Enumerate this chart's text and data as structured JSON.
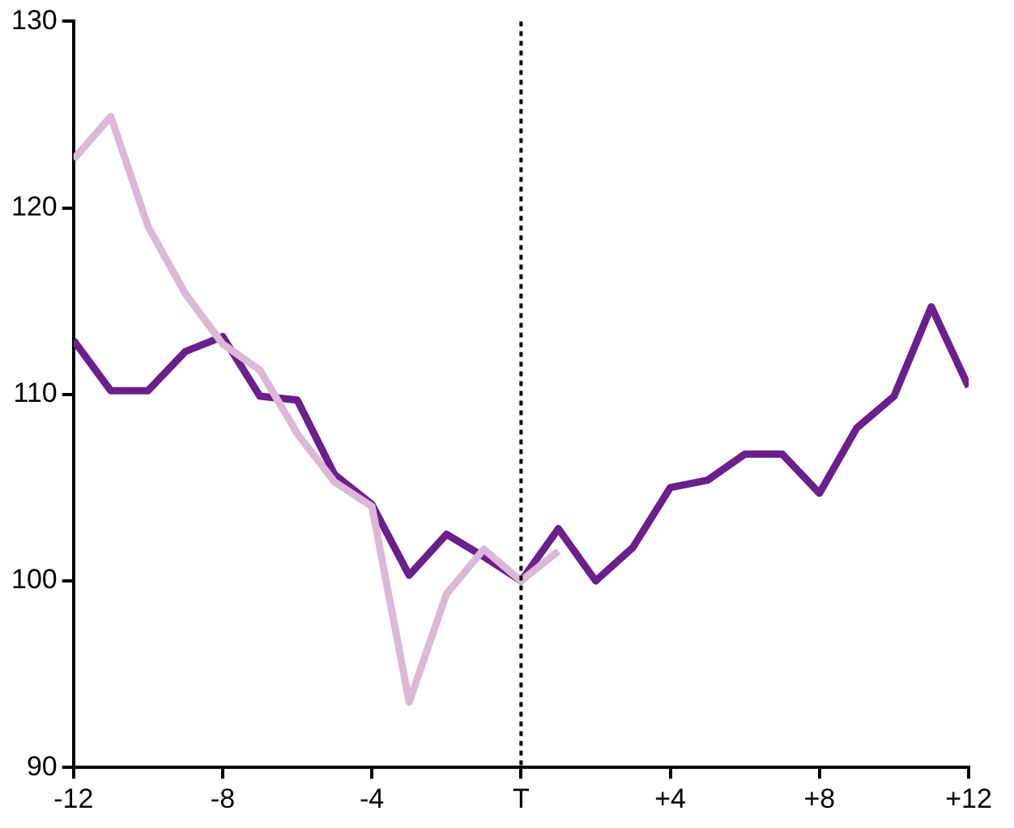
{
  "chart_data": {
    "type": "line",
    "x": [
      -12,
      -11,
      -10,
      -9,
      -8,
      -7,
      -6,
      -5,
      -4,
      -3,
      -2,
      -1,
      0,
      1,
      2,
      3,
      4,
      5,
      6,
      7,
      8,
      9,
      10,
      11,
      12
    ],
    "series": [
      {
        "color": "#dcb8d8",
        "x": [
          -12,
          -11,
          -10,
          -9,
          -8,
          -7,
          -6,
          -5,
          -4,
          -3,
          -2,
          -1,
          0,
          1
        ],
        "values": [
          122.6,
          124.9,
          119.0,
          115.4,
          112.7,
          111.3,
          107.9,
          105.3,
          104.0,
          93.5,
          99.3,
          101.7,
          100,
          101.6
        ]
      },
      {
        "color": "#6b1f8c",
        "values": [
          112.9,
          110.2,
          110.2,
          112.3,
          113.1,
          109.9,
          109.7,
          105.7,
          104.1,
          100.3,
          102.5,
          101.3,
          100,
          102.8,
          100,
          101.8,
          105.0,
          105.4,
          106.8,
          106.8,
          104.7,
          108.2,
          109.9,
          114.7,
          110.4
        ]
      }
    ],
    "xlim": [
      -12,
      12
    ],
    "xticks": [
      -12,
      -8,
      -4,
      {
        "value": 0,
        "label": "T"
      },
      {
        "value": 4,
        "label": "+4"
      },
      {
        "value": 8,
        "label": "+8"
      },
      {
        "value": 12,
        "label": "+12"
      }
    ],
    "ylim": [
      90,
      130
    ],
    "yticks": [
      90,
      100,
      110,
      120,
      130
    ],
    "ref_lines": [
      {
        "axis": "x",
        "value": 0,
        "color": "#000000",
        "line_style": "dotted"
      }
    ],
    "grid": false,
    "legend": false,
    "marker": "none",
    "line_style": "solid"
  }
}
